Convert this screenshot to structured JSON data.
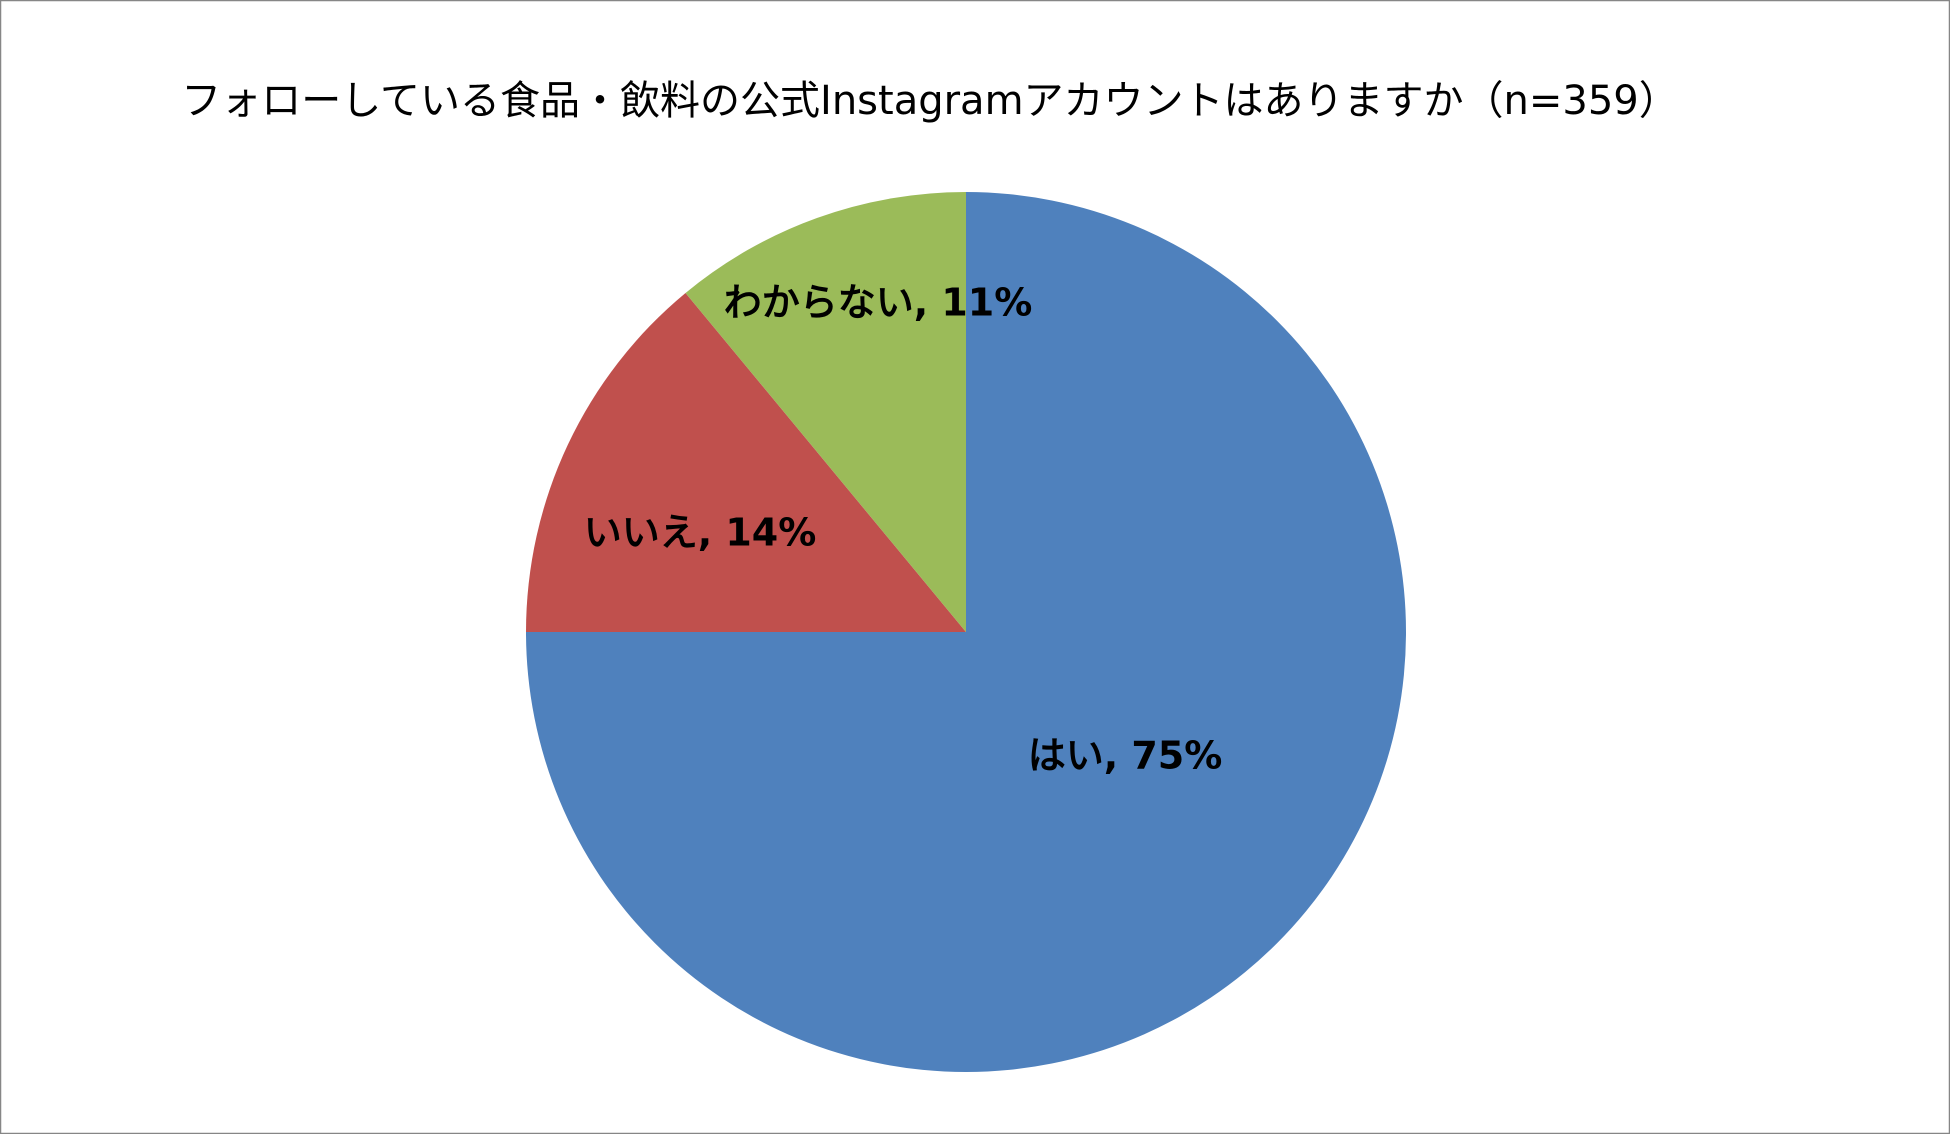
{
  "chart_data": {
    "type": "pie",
    "title": "フォローしている食品・飲料の公式Instagramアカウントはありますか（n=359）",
    "series": [
      {
        "values": [
          75,
          14,
          11
        ],
        "value_labels": [
          "はい, 75%",
          "いいえ, 14%",
          "わからない, 11%"
        ],
        "colors": [
          "#4f81bd",
          "#c0504d",
          "#9bbb59"
        ]
      }
    ]
  }
}
